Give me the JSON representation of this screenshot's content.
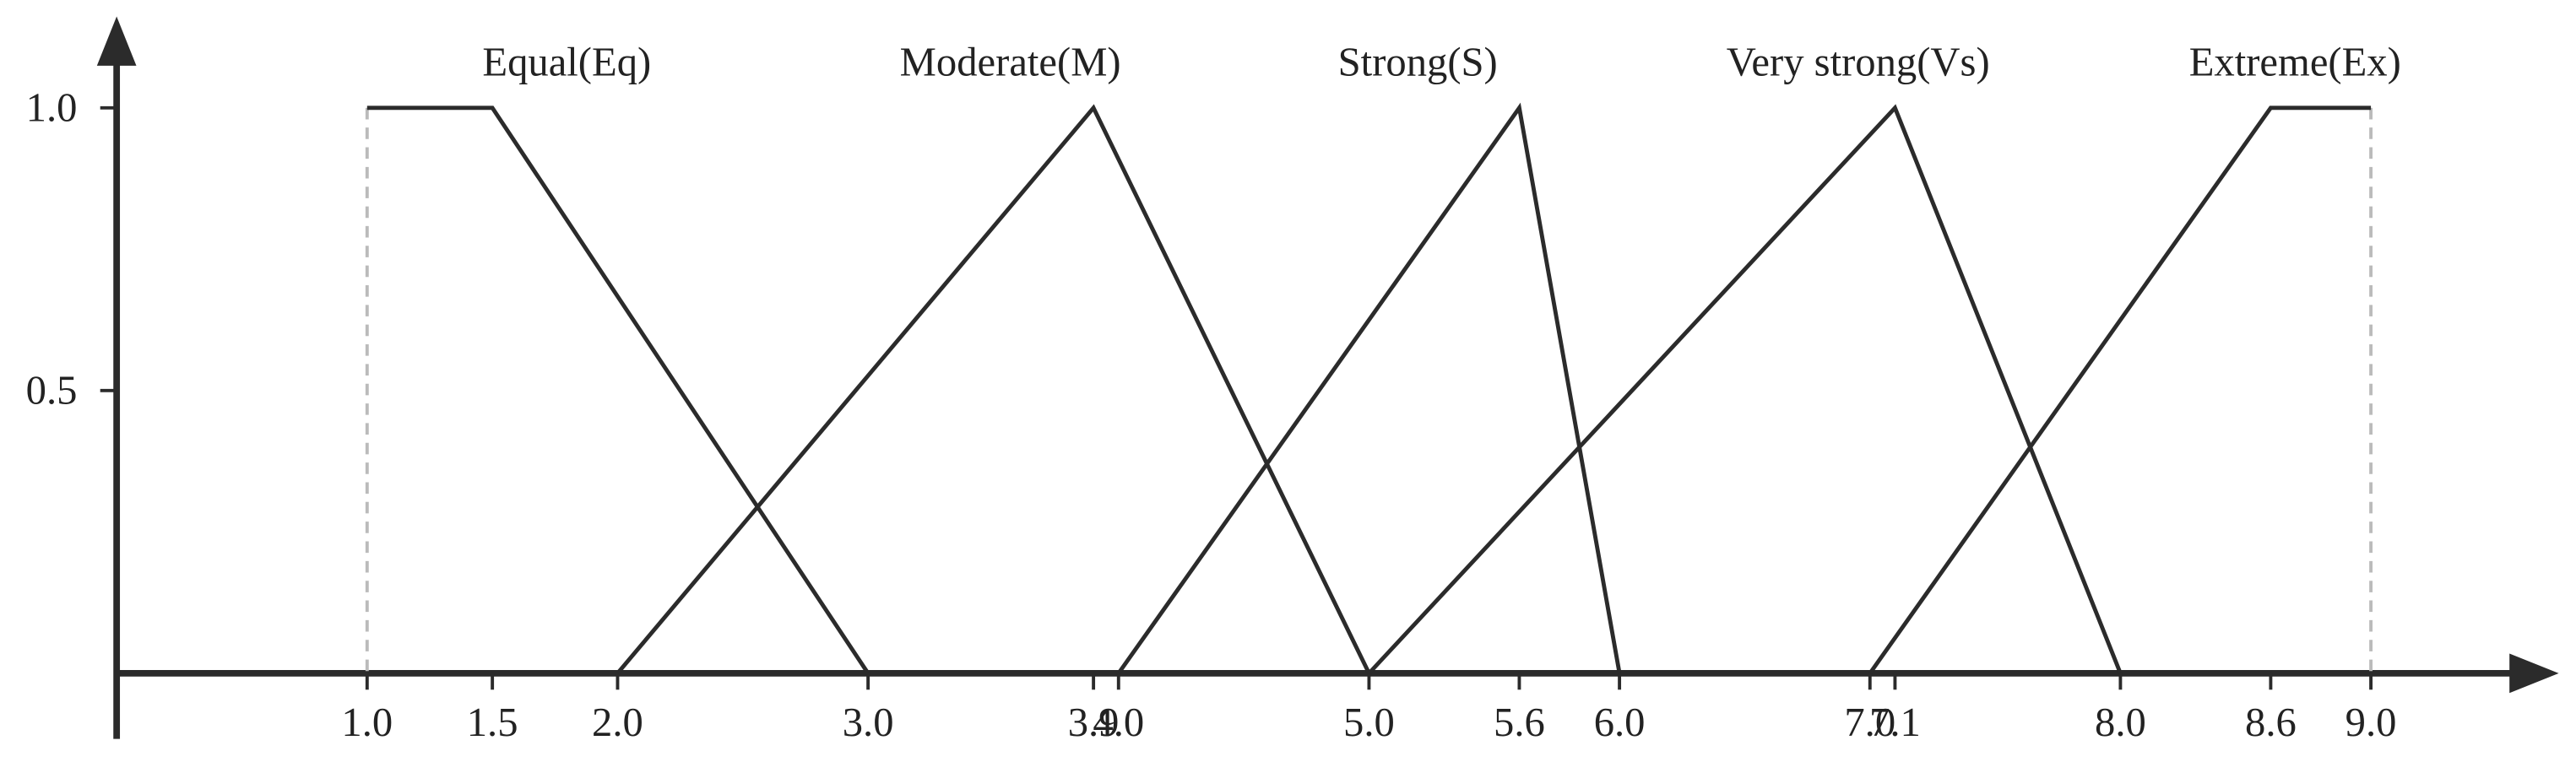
{
  "chart_data": {
    "type": "line",
    "xlim": [
      0,
      9.75
    ],
    "ylim": [
      0,
      1.15
    ],
    "xticks": [
      {
        "value": 1,
        "label": "1.0"
      },
      {
        "value": 1.5,
        "label": "1.5"
      },
      {
        "value": 2,
        "label": "2.0"
      },
      {
        "value": 3,
        "label": "3.0"
      },
      3.9,
      {
        "value": 4,
        "label": "4.0"
      },
      {
        "value": 5,
        "label": "5.0"
      },
      5.6,
      {
        "value": 6,
        "label": "6.0"
      },
      {
        "value": 7,
        "label": "7.0"
      },
      7.1,
      {
        "value": 8,
        "label": "8.0"
      },
      8.6,
      {
        "value": 9,
        "label": "9.0"
      }
    ],
    "yticks": [
      0.5,
      {
        "value": 1,
        "label": "1.0"
      }
    ],
    "color": "#2b2b2b",
    "series": [
      {
        "name": "Equal(Eq)",
        "x": [
          1,
          1.5,
          3
        ],
        "values": [
          1,
          1,
          0
        ]
      },
      {
        "name": "Moderate(M)",
        "x": [
          2,
          3.9,
          5
        ],
        "values": [
          0,
          1,
          0
        ]
      },
      {
        "name": "Strong(S)",
        "x": [
          4,
          5.6,
          6
        ],
        "values": [
          0,
          1,
          0
        ]
      },
      {
        "name": "Very strong(Vs)",
        "x": [
          5,
          7.1,
          8
        ],
        "values": [
          0,
          1,
          0
        ]
      },
      {
        "name": "Extreme(Ex)",
        "x": [
          7,
          8.6,
          9
        ],
        "values": [
          0,
          1,
          1
        ]
      }
    ]
  }
}
